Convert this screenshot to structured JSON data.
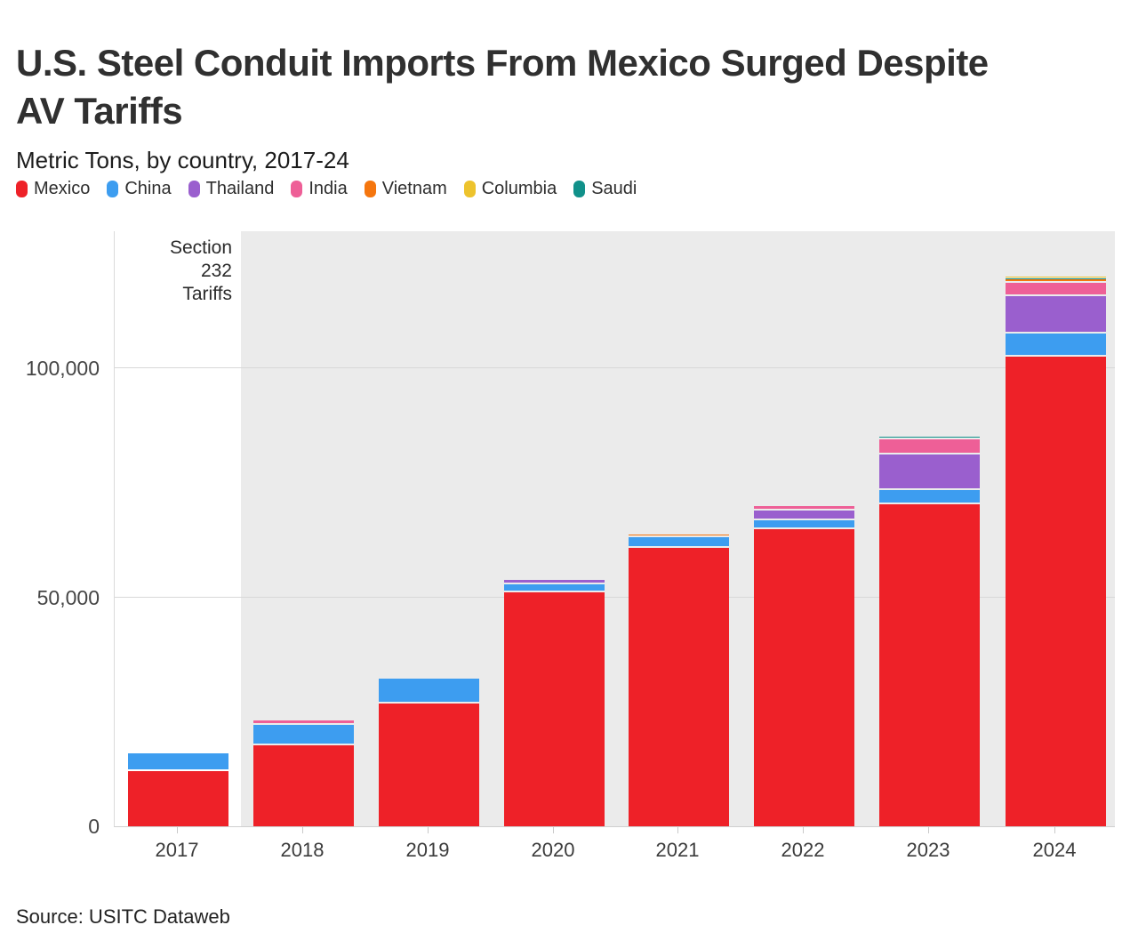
{
  "header": {
    "title_lines": [
      "U.S. Steel Conduit Imports From Mexico Surged Despite",
      "AV Tariffs"
    ],
    "subtitle": "Metric Tons, by country, 2017-24"
  },
  "legend": [
    {
      "label": "Mexico",
      "color": "#ee2128"
    },
    {
      "label": "China",
      "color": "#3d9df0"
    },
    {
      "label": "Thailand",
      "color": "#9a5fce"
    },
    {
      "label": "India",
      "color": "#ee5f97"
    },
    {
      "label": "Vietnam",
      "color": "#f5760e"
    },
    {
      "label": "Columbia",
      "color": "#edc32d"
    },
    {
      "label": "Saudi",
      "color": "#11918a"
    }
  ],
  "annotation": {
    "lines": [
      "Section",
      "232",
      "Tariffs"
    ]
  },
  "y_axis": {
    "ticks": [
      {
        "label": "0",
        "value": 0
      },
      {
        "label": "50,000",
        "value": 50000
      },
      {
        "label": "100,000",
        "value": 100000
      }
    ]
  },
  "source": "Source: USITC Dataweb",
  "chart_data": {
    "type": "bar",
    "stacked": true,
    "title": "U.S. Steel Conduit Imports From Mexico Surged Despite AV Tariffs",
    "subtitle": "Metric Tons, by country, 2017-24",
    "unit": "Metric Tons",
    "categories": [
      "2017",
      "2018",
      "2019",
      "2020",
      "2021",
      "2022",
      "2023",
      "2024"
    ],
    "series": [
      {
        "name": "Mexico",
        "color": "#ee2128",
        "values": [
          12000,
          17600,
          26900,
          51200,
          60900,
          64900,
          70300,
          102600
        ]
      },
      {
        "name": "China",
        "color": "#3d9df0",
        "values": [
          3950,
          4500,
          5400,
          1750,
          2250,
          1950,
          3100,
          5000
        ]
      },
      {
        "name": "Thailand",
        "color": "#9a5fce",
        "values": [
          0,
          0,
          0,
          950,
          0,
          2200,
          7900,
          8300
        ]
      },
      {
        "name": "India",
        "color": "#ee5f97",
        "values": [
          0,
          1000,
          0,
          0,
          0,
          1000,
          3200,
          2900
        ]
      },
      {
        "name": "Vietnam",
        "color": "#f5760e",
        "values": [
          0,
          0,
          0,
          0,
          550,
          0,
          0,
          300
        ]
      },
      {
        "name": "Saudi",
        "color": "#11918a",
        "values": [
          0,
          0,
          0,
          0,
          0,
          0,
          600,
          400
        ]
      },
      {
        "name": "Columbia",
        "color": "#edc32d",
        "values": [
          0,
          0,
          0,
          0,
          0,
          0,
          0,
          400
        ]
      }
    ],
    "totals": [
      15950,
      23100,
      32300,
      53900,
      63700,
      70050,
      85100,
      119900
    ],
    "ylim": [
      0,
      130000
    ],
    "grid": "horizontal",
    "legend_position": "top",
    "annotation": "Section 232 Tariffs",
    "tariff_band_from_category": "2018"
  }
}
